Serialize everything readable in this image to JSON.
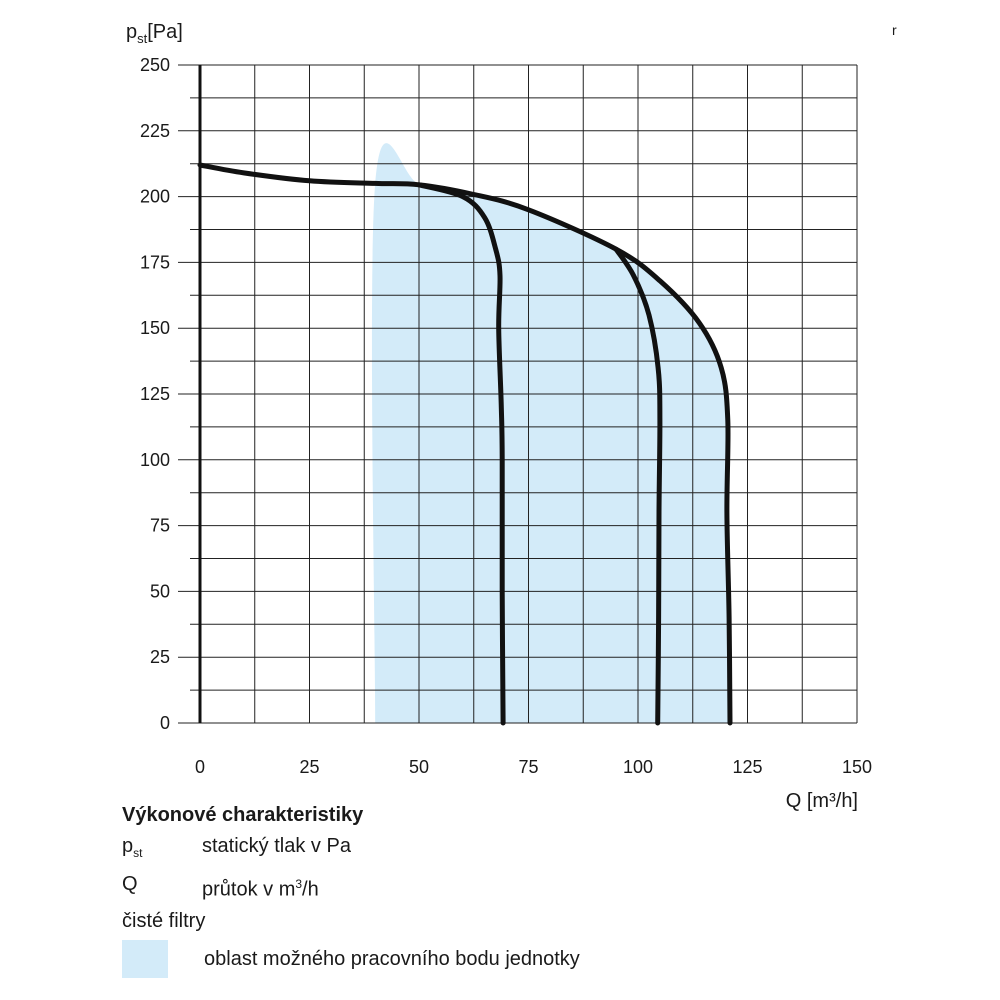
{
  "chart_data": {
    "type": "line",
    "title": "",
    "ylabel_main": "p",
    "ylabel_sub": "st",
    "ylabel_unit": "[Pa]",
    "xlabel": "Q [m³/h]",
    "xlim": [
      0,
      150
    ],
    "ylim": [
      0,
      250
    ],
    "x_ticks": [
      "0",
      "25",
      "50",
      "75",
      "100",
      "125",
      "150"
    ],
    "y_ticks": [
      "0",
      "25",
      "50",
      "75",
      "100",
      "125",
      "150",
      "175",
      "200",
      "225",
      "250"
    ],
    "grid": true,
    "region": {
      "label": "oblast možného pracovního bodu jednotky",
      "color": "#d3ebf9",
      "points": [
        [
          40,
          0
        ],
        [
          40,
          205
        ],
        [
          50,
          205
        ],
        [
          62,
          201
        ],
        [
          75,
          195
        ],
        [
          95,
          180
        ],
        [
          105,
          168
        ],
        [
          114,
          152
        ],
        [
          119,
          135
        ],
        [
          120.5,
          115
        ],
        [
          120.3,
          80
        ],
        [
          120.8,
          40
        ],
        [
          121,
          0
        ]
      ]
    },
    "series": [
      {
        "name": "",
        "points": [
          [
            0,
            212
          ],
          [
            10,
            209
          ],
          [
            25,
            206
          ],
          [
            40,
            205
          ],
          [
            50,
            204.5
          ],
          [
            62,
            201
          ],
          [
            75,
            195
          ],
          [
            95,
            180
          ],
          [
            105,
            168
          ],
          [
            114,
            152
          ],
          [
            119,
            135
          ],
          [
            120.5,
            115
          ],
          [
            120.3,
            80
          ],
          [
            120.8,
            40
          ],
          [
            121,
            0
          ]
        ]
      },
      {
        "name": "",
        "points": [
          [
            50,
            204.5
          ],
          [
            60,
            200
          ],
          [
            65,
            192
          ],
          [
            67.5,
            180
          ],
          [
            68.5,
            170
          ],
          [
            68.2,
            150
          ],
          [
            68.8,
            120
          ],
          [
            69,
            100
          ],
          [
            69,
            50
          ],
          [
            69.2,
            0
          ]
        ]
      },
      {
        "name": "",
        "points": [
          [
            95,
            180
          ],
          [
            99,
            170
          ],
          [
            102.5,
            155
          ],
          [
            104.6,
            135
          ],
          [
            105,
            115
          ],
          [
            104.8,
            80
          ],
          [
            104.7,
            40
          ],
          [
            104.5,
            0
          ]
        ]
      }
    ],
    "line_color": "#111111"
  },
  "legend": {
    "title": "Výkonové charakteristiky",
    "rows": [
      {
        "symbol": "p",
        "symbol_sub": "st",
        "desc": "statický tlak v Pa",
        "desc_sup": ""
      },
      {
        "symbol": "Q",
        "symbol_sub": "",
        "desc": "průtok v m",
        "desc_sup": "3",
        "desc_tail": "/h"
      }
    ],
    "note": "čisté filtry",
    "swatch_label": "oblast možného pracovního bodu jednotky"
  },
  "stray_mark": "r"
}
